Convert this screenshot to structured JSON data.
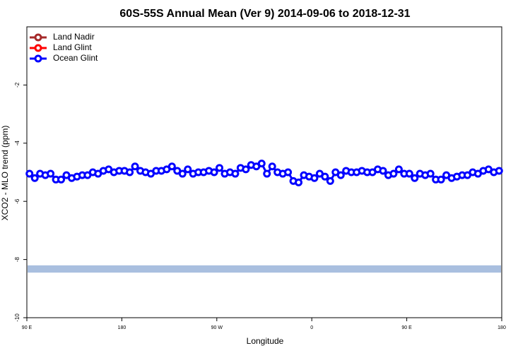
{
  "chart_data": {
    "type": "line",
    "title": "60S-55S Annual Mean (Ver 9)   2014-09-06 to 2018-12-31",
    "x_label": "Longitude",
    "y_label": "XCO2 - MLO trend (ppm)",
    "xlim": [
      90,
      540
    ],
    "ylim": [
      -10,
      0
    ],
    "xticks": [
      {
        "value": 90,
        "label": "90 E"
      },
      {
        "value": 180,
        "label": "180"
      },
      {
        "value": 270,
        "label": "90 W"
      },
      {
        "value": 360,
        "label": "0"
      },
      {
        "value": 450,
        "label": "90 E"
      },
      {
        "value": 540,
        "label": "180"
      }
    ],
    "yticks": [
      -2,
      -4,
      -6,
      -8,
      -10
    ],
    "legend_position": "upper-left",
    "band": {
      "ymin": -8.45,
      "ymax": -8.2,
      "color": "#a9bfdf"
    },
    "x": [
      92.5,
      97.5,
      102.5,
      107.5,
      112.5,
      117.5,
      122.5,
      127.5,
      132.5,
      137.5,
      142.5,
      147.5,
      152.5,
      157.5,
      162.5,
      167.5,
      172.5,
      177.5,
      182.5,
      187.5,
      192.5,
      197.5,
      202.5,
      207.5,
      212.5,
      217.5,
      222.5,
      227.5,
      232.5,
      237.5,
      242.5,
      247.5,
      252.5,
      257.5,
      262.5,
      267.5,
      272.5,
      277.5,
      282.5,
      287.5,
      292.5,
      297.5,
      302.5,
      307.5,
      312.5,
      317.5,
      322.5,
      327.5,
      332.5,
      337.5,
      342.5,
      347.5,
      352.5,
      357.5,
      362.5,
      367.5,
      372.5,
      377.5,
      382.5,
      387.5,
      392.5,
      397.5,
      402.5,
      407.5,
      412.5,
      417.5,
      422.5,
      427.5,
      432.5,
      437.5,
      442.5,
      447.5,
      452.5,
      457.5,
      462.5,
      467.5,
      472.5,
      477.5,
      482.5,
      487.5,
      492.5,
      497.5,
      502.5,
      507.5,
      512.5,
      517.5,
      522.5,
      527.5,
      532.5,
      537.5
    ],
    "series": [
      {
        "name": "Land Nadir",
        "color": "#a52a2a",
        "values": [
          null,
          null,
          null,
          null,
          null,
          null,
          null,
          null,
          null,
          null,
          null,
          null,
          null,
          null,
          null,
          null,
          null,
          null,
          null,
          null,
          null,
          null,
          null,
          null,
          null,
          null,
          null,
          null,
          null,
          null,
          null,
          null,
          null,
          null,
          null,
          null,
          null,
          null,
          null,
          null,
          null,
          null,
          null,
          null,
          null,
          null,
          null,
          null,
          null,
          null,
          null,
          null,
          null,
          null,
          null,
          null,
          null,
          null,
          null,
          null,
          null,
          null,
          null,
          null,
          null,
          null,
          null,
          null,
          null,
          null,
          null,
          null,
          null,
          null,
          null,
          null,
          null,
          null,
          null,
          null,
          null,
          null,
          null,
          null,
          null,
          null,
          null,
          null,
          null,
          null
        ]
      },
      {
        "name": "Land Glint",
        "color": "#ff0000",
        "values": [
          null,
          null,
          null,
          null,
          null,
          null,
          null,
          null,
          null,
          null,
          null,
          null,
          null,
          null,
          null,
          null,
          null,
          null,
          null,
          null,
          null,
          null,
          null,
          null,
          null,
          null,
          null,
          null,
          null,
          null,
          null,
          null,
          null,
          null,
          null,
          null,
          null,
          null,
          null,
          null,
          null,
          null,
          null,
          null,
          null,
          null,
          null,
          null,
          null,
          null,
          null,
          null,
          null,
          null,
          null,
          null,
          null,
          null,
          null,
          null,
          null,
          null,
          null,
          null,
          null,
          null,
          null,
          null,
          null,
          null,
          null,
          null,
          null,
          null,
          null,
          null,
          null,
          null,
          null,
          null,
          null,
          null,
          null,
          null,
          null,
          null,
          null,
          null,
          null,
          null
        ]
      },
      {
        "name": "Ocean Glint",
        "color": "#0000ff",
        "values": [
          -5.05,
          -5.2,
          -5.05,
          -5.1,
          -5.05,
          -5.25,
          -5.25,
          -5.1,
          -5.2,
          -5.15,
          -5.1,
          -5.1,
          -5.0,
          -5.05,
          -4.95,
          -4.9,
          -5.0,
          -4.95,
          -4.95,
          -5.0,
          -4.8,
          -4.95,
          -5.0,
          -5.05,
          -4.95,
          -4.95,
          -4.9,
          -4.8,
          -4.95,
          -5.05,
          -4.9,
          -5.05,
          -5.0,
          -5.0,
          -4.95,
          -5.0,
          -4.85,
          -5.05,
          -5.0,
          -5.05,
          -4.85,
          -4.9,
          -4.75,
          -4.8,
          -4.7,
          -5.05,
          -4.8,
          -5.0,
          -5.05,
          -5.0,
          -5.3,
          -5.35,
          -5.1,
          -5.15,
          -5.2,
          -5.05,
          -5.15,
          -5.3,
          -5.0,
          -5.1,
          -4.95,
          -5.0,
          -5.0,
          -4.95,
          -5.0,
          -5.0,
          -4.9,
          -4.95,
          -5.1,
          -5.05,
          -4.9,
          -5.05,
          -5.05,
          -5.2,
          -5.05,
          -5.1,
          -5.05,
          -5.25,
          -5.25,
          -5.1,
          -5.2,
          -5.15,
          -5.1,
          -5.1,
          -5.0,
          -5.05,
          -4.95,
          -4.9,
          -5.0,
          -4.95
        ]
      }
    ]
  }
}
